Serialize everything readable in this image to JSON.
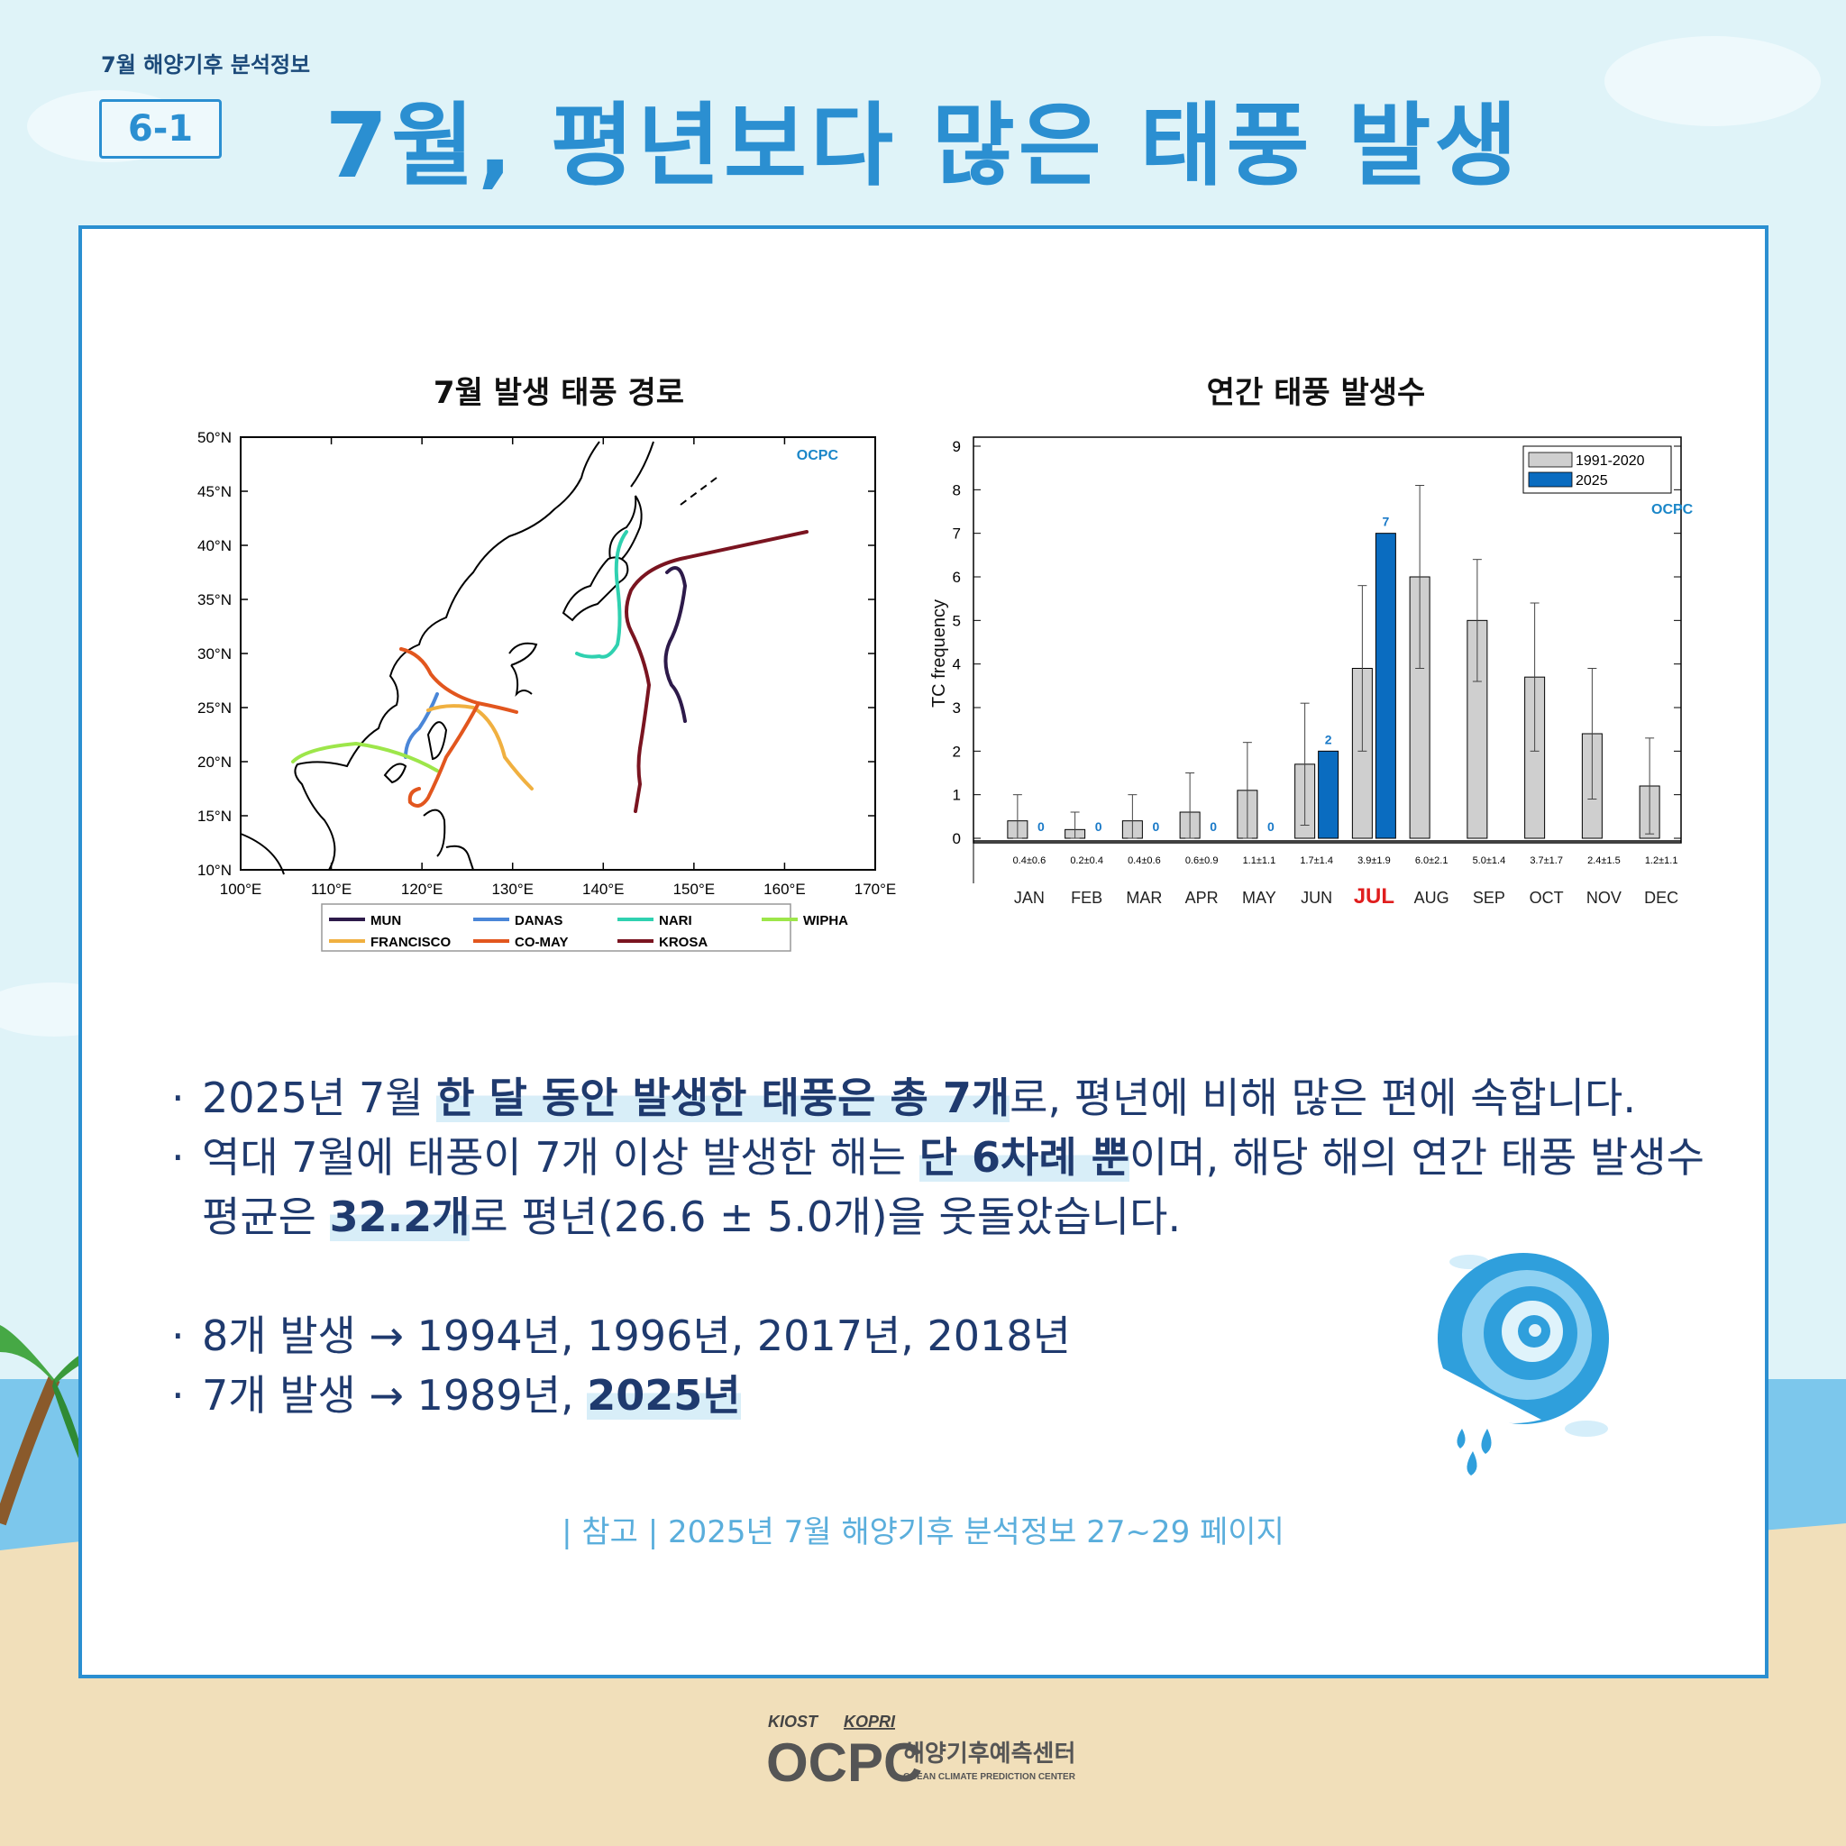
{
  "header": {
    "subtitle": "7월 해양기후 분석정보",
    "badge": "6-1",
    "title": "7월, 평년보다 많은 태풍 발생"
  },
  "map_chart": {
    "title": "7월 발생 태풍 경로",
    "lat_labels": [
      "50°N",
      "45°N",
      "40°N",
      "35°N",
      "30°N",
      "25°N",
      "20°N",
      "15°N",
      "10°N"
    ],
    "lon_labels": [
      "100°E",
      "110°E",
      "120°E",
      "130°E",
      "140°E",
      "150°E",
      "160°E",
      "170°E"
    ],
    "logo_text": "OCPC",
    "legend": [
      {
        "name": "MUN",
        "color": "#2d1a4a"
      },
      {
        "name": "DANAS",
        "color": "#4a86d8"
      },
      {
        "name": "NARI",
        "color": "#2fd1b0"
      },
      {
        "name": "WIPHA",
        "color": "#9de64a"
      },
      {
        "name": "FRANCISCO",
        "color": "#f0b040"
      },
      {
        "name": "CO-MAY",
        "color": "#e2561e"
      },
      {
        "name": "KROSA",
        "color": "#7a1420"
      }
    ]
  },
  "chart_data": {
    "type": "bar",
    "title": "연간 태풍 발생수",
    "ylabel": "TC frequency",
    "ylim": [
      0,
      9
    ],
    "yticks": [
      "0",
      "1",
      "2",
      "3",
      "4",
      "5",
      "6",
      "7",
      "8",
      "9"
    ],
    "categories": [
      "JAN",
      "FEB",
      "MAR",
      "APR",
      "MAY",
      "JUN",
      "JUL",
      "AUG",
      "SEP",
      "OCT",
      "NOV",
      "DEC"
    ],
    "highlight_category": "JUL",
    "series": [
      {
        "name": "1991-2020",
        "color": "#cfcfcf",
        "values": [
          0.4,
          0.2,
          0.4,
          0.6,
          1.1,
          1.7,
          3.9,
          6.0,
          5.0,
          3.7,
          2.4,
          1.2
        ],
        "errors": [
          0.6,
          0.4,
          0.6,
          0.9,
          1.1,
          1.4,
          1.9,
          2.1,
          1.4,
          1.7,
          1.5,
          1.1
        ],
        "labels": [
          "0.4±0.6",
          "0.2±0.4",
          "0.4±0.6",
          "0.6±0.9",
          "1.1±1.1",
          "1.7±1.4",
          "3.9±1.9",
          "6.0±2.1",
          "5.0±1.4",
          "3.7±1.7",
          "2.4±1.5",
          "1.2±1.1"
        ]
      },
      {
        "name": "2025",
        "color": "#0a6cc0",
        "values": [
          0,
          0,
          0,
          0,
          0,
          2,
          7,
          null,
          null,
          null,
          null,
          null
        ],
        "labels": [
          "0",
          "0",
          "0",
          "0",
          "0",
          "2",
          "7",
          "",
          "",
          "",
          "",
          ""
        ]
      }
    ],
    "legend_position": "top-right",
    "logo_text": "OCPC"
  },
  "body": {
    "b1_pre": "2025년 7월 ",
    "b1_hl": "한 달 동안 발생한 태풍은 총 7개",
    "b1_post": "로, 평년에 비해 많은 편에 속합니다.",
    "b2_pre": "역대 7월에 태풍이 7개 이상 발생한 해는 ",
    "b2_hl": "단 6차례 뿐",
    "b2_post": "이며, 해당 해의 연간 태풍 발생수",
    "b2_line2_pre": "평균은 ",
    "b2_line2_hl": "32.2개",
    "b2_line2_post": "로 평년(26.6 ± 5.0개)을 웃돌았습니다.",
    "b3": "8개 발생 → 1994년, 1996년, 2017년, 2018년",
    "b4_pre": "7개 발생 → 1989년, ",
    "b4_hl": "2025년",
    "dot": "·"
  },
  "reference": "| 참고 |  2025년 7월 해양기후 분석정보 27~29 페이지",
  "footer": {
    "kiost": "KIOST",
    "kopri": "KOPRI",
    "ocpc": "OCPC",
    "center_kr": "해양기후예측센터",
    "center_en": "OCEAN CLIMATE PREDICTION CENTER"
  }
}
